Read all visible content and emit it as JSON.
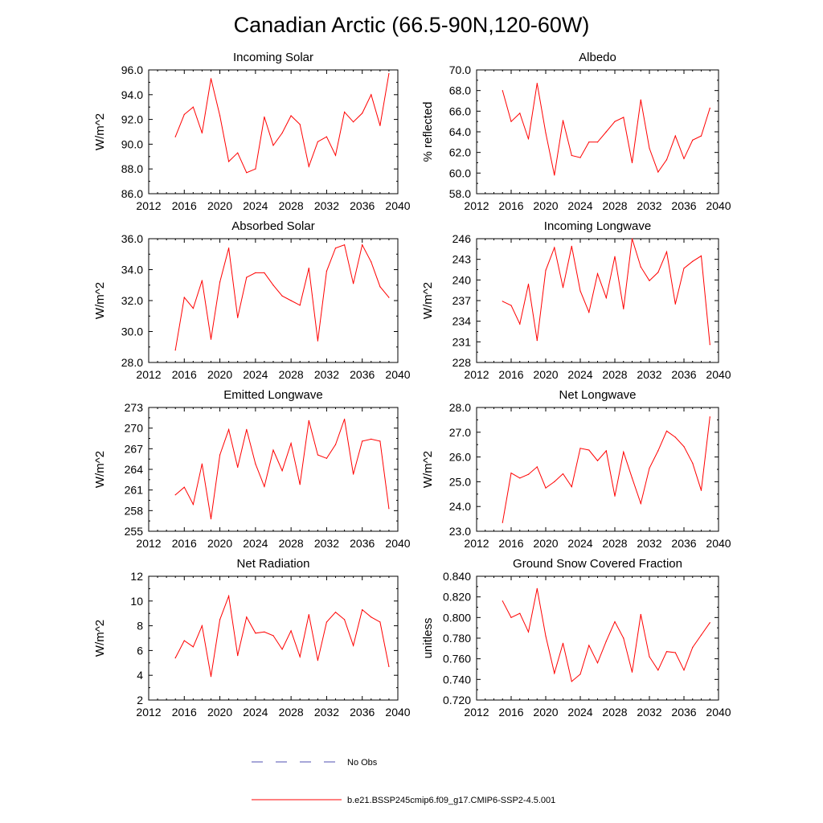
{
  "figure": {
    "title": "Canadian Arctic (66.5-90N,120-60W)",
    "legend": [
      {
        "label": "No Obs",
        "color": "#4f4fb0",
        "style": "dashed"
      },
      {
        "label": "b.e21.BSSP245cmip6.f09_g17.CMIP6-SSP2-4.5.001",
        "color": "#ff0000",
        "style": "solid"
      }
    ]
  },
  "chart_data": [
    {
      "type": "line",
      "title": "Incoming Solar",
      "ylabel": "W/m^2",
      "xlim": [
        2012,
        2040
      ],
      "xticks": [
        2012,
        2016,
        2020,
        2024,
        2028,
        2032,
        2036,
        2040
      ],
      "ylim": [
        86,
        96
      ],
      "yticks": [
        86,
        88,
        90,
        92,
        94,
        96
      ],
      "ytick_labels": [
        "86.0",
        "88.0",
        "90.0",
        "92.0",
        "94.0",
        "96.0"
      ],
      "grid": false,
      "series": [
        {
          "name": "b.e21.BSSP245cmip6.f09_g17.CMIP6-SSP2-4.5.001",
          "color": "#ff0000",
          "x": [
            2015,
            2016,
            2017,
            2018,
            2019,
            2020,
            2021,
            2022,
            2023,
            2024,
            2025,
            2026,
            2027,
            2028,
            2029,
            2030,
            2031,
            2032,
            2033,
            2034,
            2035,
            2036,
            2037,
            2038,
            2039
          ],
          "y": [
            90.6,
            92.4,
            93.0,
            90.9,
            95.3,
            92.3,
            88.6,
            89.3,
            87.7,
            88.0,
            92.2,
            89.9,
            90.9,
            92.3,
            91.6,
            88.2,
            90.2,
            90.6,
            89.1,
            92.6,
            91.8,
            92.5,
            94.0,
            91.5,
            95.7
          ]
        }
      ]
    },
    {
      "type": "line",
      "title": "Albedo",
      "ylabel": "% reflected",
      "xlim": [
        2012,
        2040
      ],
      "xticks": [
        2012,
        2016,
        2020,
        2024,
        2028,
        2032,
        2036,
        2040
      ],
      "ylim": [
        58,
        70
      ],
      "yticks": [
        58,
        60,
        62,
        64,
        66,
        68,
        70
      ],
      "ytick_labels": [
        "58.0",
        "60.0",
        "62.0",
        "64.0",
        "66.0",
        "68.0",
        "70.0"
      ],
      "grid": false,
      "series": [
        {
          "name": "b.e21.BSSP245cmip6.f09_g17.CMIP6-SSP2-4.5.001",
          "color": "#ff0000",
          "x": [
            2015,
            2016,
            2017,
            2018,
            2019,
            2020,
            2021,
            2022,
            2023,
            2024,
            2025,
            2026,
            2027,
            2028,
            2029,
            2030,
            2031,
            2032,
            2033,
            2034,
            2035,
            2036,
            2037,
            2038,
            2039
          ],
          "y": [
            68.0,
            65.0,
            65.8,
            63.3,
            68.7,
            63.9,
            59.8,
            65.1,
            61.7,
            61.5,
            63.0,
            63.0,
            64.0,
            65.0,
            65.4,
            61.0,
            67.1,
            62.4,
            60.1,
            61.3,
            63.6,
            61.4,
            63.2,
            63.6,
            66.3
          ]
        }
      ]
    },
    {
      "type": "line",
      "title": "Absorbed Solar",
      "ylabel": "W/m^2",
      "xlim": [
        2012,
        2040
      ],
      "xticks": [
        2012,
        2016,
        2020,
        2024,
        2028,
        2032,
        2036,
        2040
      ],
      "ylim": [
        28,
        36
      ],
      "yticks": [
        28,
        30,
        32,
        34,
        36
      ],
      "ytick_labels": [
        "28.0",
        "30.0",
        "32.0",
        "34.0",
        "36.0"
      ],
      "grid": false,
      "series": [
        {
          "name": "b.e21.BSSP245cmip6.f09_g17.CMIP6-SSP2-4.5.001",
          "color": "#ff0000",
          "x": [
            2015,
            2016,
            2017,
            2018,
            2019,
            2020,
            2021,
            2022,
            2023,
            2024,
            2025,
            2026,
            2027,
            2028,
            2029,
            2030,
            2031,
            2032,
            2033,
            2034,
            2035,
            2036,
            2037,
            2038,
            2039
          ],
          "y": [
            28.8,
            32.2,
            31.5,
            33.3,
            29.5,
            33.2,
            35.4,
            30.9,
            33.5,
            33.8,
            33.8,
            33.0,
            32.3,
            32.0,
            31.7,
            34.1,
            29.4,
            33.9,
            35.4,
            35.6,
            33.1,
            35.6,
            34.5,
            32.9,
            32.2
          ]
        }
      ]
    },
    {
      "type": "line",
      "title": "Incoming Longwave",
      "ylabel": "W/m^2",
      "xlim": [
        2012,
        2040
      ],
      "xticks": [
        2012,
        2016,
        2020,
        2024,
        2028,
        2032,
        2036,
        2040
      ],
      "ylim": [
        228,
        246
      ],
      "yticks": [
        228,
        231,
        234,
        237,
        240,
        243,
        246
      ],
      "ytick_labels": [
        "228",
        "231",
        "234",
        "237",
        "240",
        "243",
        "246"
      ],
      "grid": false,
      "series": [
        {
          "name": "b.e21.BSSP245cmip6.f09_g17.CMIP6-SSP2-4.5.001",
          "color": "#ff0000",
          "x": [
            2015,
            2016,
            2017,
            2018,
            2019,
            2020,
            2021,
            2022,
            2023,
            2024,
            2025,
            2026,
            2027,
            2028,
            2029,
            2030,
            2031,
            2032,
            2033,
            2034,
            2035,
            2036,
            2037,
            2038,
            2039
          ],
          "y": [
            236.9,
            236.3,
            233.6,
            239.4,
            231.2,
            241.4,
            244.7,
            238.9,
            244.9,
            238.4,
            235.3,
            240.9,
            237.4,
            243.4,
            235.8,
            246.0,
            241.9,
            239.9,
            241.1,
            244.1,
            236.5,
            241.7,
            242.7,
            243.5,
            230.6
          ]
        }
      ]
    },
    {
      "type": "line",
      "title": "Emitted Longwave",
      "ylabel": "W/m^2",
      "xlim": [
        2012,
        2040
      ],
      "xticks": [
        2012,
        2016,
        2020,
        2024,
        2028,
        2032,
        2036,
        2040
      ],
      "ylim": [
        255,
        273
      ],
      "yticks": [
        255,
        258,
        261,
        264,
        267,
        270,
        273
      ],
      "ytick_labels": [
        "255",
        "258",
        "261",
        "264",
        "267",
        "270",
        "273"
      ],
      "grid": false,
      "series": [
        {
          "name": "b.e21.BSSP245cmip6.f09_g17.CMIP6-SSP2-4.5.001",
          "color": "#ff0000",
          "x": [
            2015,
            2016,
            2017,
            2018,
            2019,
            2020,
            2021,
            2022,
            2023,
            2024,
            2025,
            2026,
            2027,
            2028,
            2029,
            2030,
            2031,
            2032,
            2033,
            2034,
            2035,
            2036,
            2037,
            2038,
            2039
          ],
          "y": [
            260.3,
            261.4,
            258.9,
            264.8,
            256.8,
            266.1,
            269.8,
            264.3,
            269.8,
            264.8,
            261.5,
            266.8,
            263.8,
            267.8,
            261.8,
            271.1,
            266.1,
            265.6,
            267.6,
            271.3,
            263.3,
            268.1,
            268.4,
            268.1,
            258.3
          ]
        }
      ]
    },
    {
      "type": "line",
      "title": "Net Longwave",
      "ylabel": "W/m^2",
      "xlim": [
        2012,
        2040
      ],
      "xticks": [
        2012,
        2016,
        2020,
        2024,
        2028,
        2032,
        2036,
        2040
      ],
      "ylim": [
        23,
        28
      ],
      "yticks": [
        23,
        24,
        25,
        26,
        27,
        28
      ],
      "ytick_labels": [
        "23.0",
        "24.0",
        "25.0",
        "26.0",
        "27.0",
        "28.0"
      ],
      "grid": false,
      "series": [
        {
          "name": "b.e21.BSSP245cmip6.f09_g17.CMIP6-SSP2-4.5.001",
          "color": "#ff0000",
          "x": [
            2015,
            2016,
            2017,
            2018,
            2019,
            2020,
            2021,
            2022,
            2023,
            2024,
            2025,
            2026,
            2027,
            2028,
            2029,
            2030,
            2031,
            2032,
            2033,
            2034,
            2035,
            2036,
            2037,
            2038,
            2039
          ],
          "y": [
            23.35,
            25.35,
            25.15,
            25.3,
            25.6,
            24.75,
            25.0,
            25.32,
            24.8,
            26.35,
            26.28,
            25.85,
            26.25,
            24.42,
            26.2,
            25.15,
            24.12,
            25.55,
            26.25,
            27.05,
            26.8,
            26.42,
            25.75,
            24.65,
            27.62
          ]
        }
      ]
    },
    {
      "type": "line",
      "title": "Net Radiation",
      "ylabel": "W/m^2",
      "xlim": [
        2012,
        2040
      ],
      "xticks": [
        2012,
        2016,
        2020,
        2024,
        2028,
        2032,
        2036,
        2040
      ],
      "ylim": [
        2,
        12
      ],
      "yticks": [
        2,
        4,
        6,
        8,
        10,
        12
      ],
      "ytick_labels": [
        "2",
        "4",
        "6",
        "8",
        "10",
        "12"
      ],
      "grid": false,
      "series": [
        {
          "name": "b.e21.BSSP245cmip6.f09_g17.CMIP6-SSP2-4.5.001",
          "color": "#ff0000",
          "x": [
            2015,
            2016,
            2017,
            2018,
            2019,
            2020,
            2021,
            2022,
            2023,
            2024,
            2025,
            2026,
            2027,
            2028,
            2029,
            2030,
            2031,
            2032,
            2033,
            2034,
            2035,
            2036,
            2037,
            2038,
            2039
          ],
          "y": [
            5.4,
            6.8,
            6.3,
            8.0,
            3.9,
            8.5,
            10.4,
            5.6,
            8.7,
            7.4,
            7.5,
            7.2,
            6.1,
            7.6,
            5.5,
            8.9,
            5.2,
            8.3,
            9.1,
            8.5,
            6.4,
            9.3,
            8.7,
            8.3,
            4.7
          ]
        }
      ]
    },
    {
      "type": "line",
      "title": "Ground Snow Covered Fraction",
      "ylabel": "unitless",
      "xlim": [
        2012,
        2040
      ],
      "xticks": [
        2012,
        2016,
        2020,
        2024,
        2028,
        2032,
        2036,
        2040
      ],
      "ylim": [
        0.72,
        0.84
      ],
      "yticks": [
        0.72,
        0.74,
        0.76,
        0.78,
        0.8,
        0.82,
        0.84
      ],
      "ytick_labels": [
        "0.720",
        "0.740",
        "0.760",
        "0.780",
        "0.800",
        "0.820",
        "0.840"
      ],
      "grid": false,
      "series": [
        {
          "name": "b.e21.BSSP245cmip6.f09_g17.CMIP6-SSP2-4.5.001",
          "color": "#ff0000",
          "x": [
            2015,
            2016,
            2017,
            2018,
            2019,
            2020,
            2021,
            2022,
            2023,
            2024,
            2025,
            2026,
            2027,
            2028,
            2029,
            2030,
            2031,
            2032,
            2033,
            2034,
            2035,
            2036,
            2037,
            2038,
            2039
          ],
          "y": [
            0.816,
            0.8,
            0.804,
            0.786,
            0.828,
            0.782,
            0.746,
            0.775,
            0.738,
            0.745,
            0.773,
            0.756,
            0.777,
            0.796,
            0.78,
            0.747,
            0.803,
            0.762,
            0.749,
            0.767,
            0.766,
            0.749,
            0.771,
            0.783,
            0.795
          ]
        }
      ]
    }
  ]
}
